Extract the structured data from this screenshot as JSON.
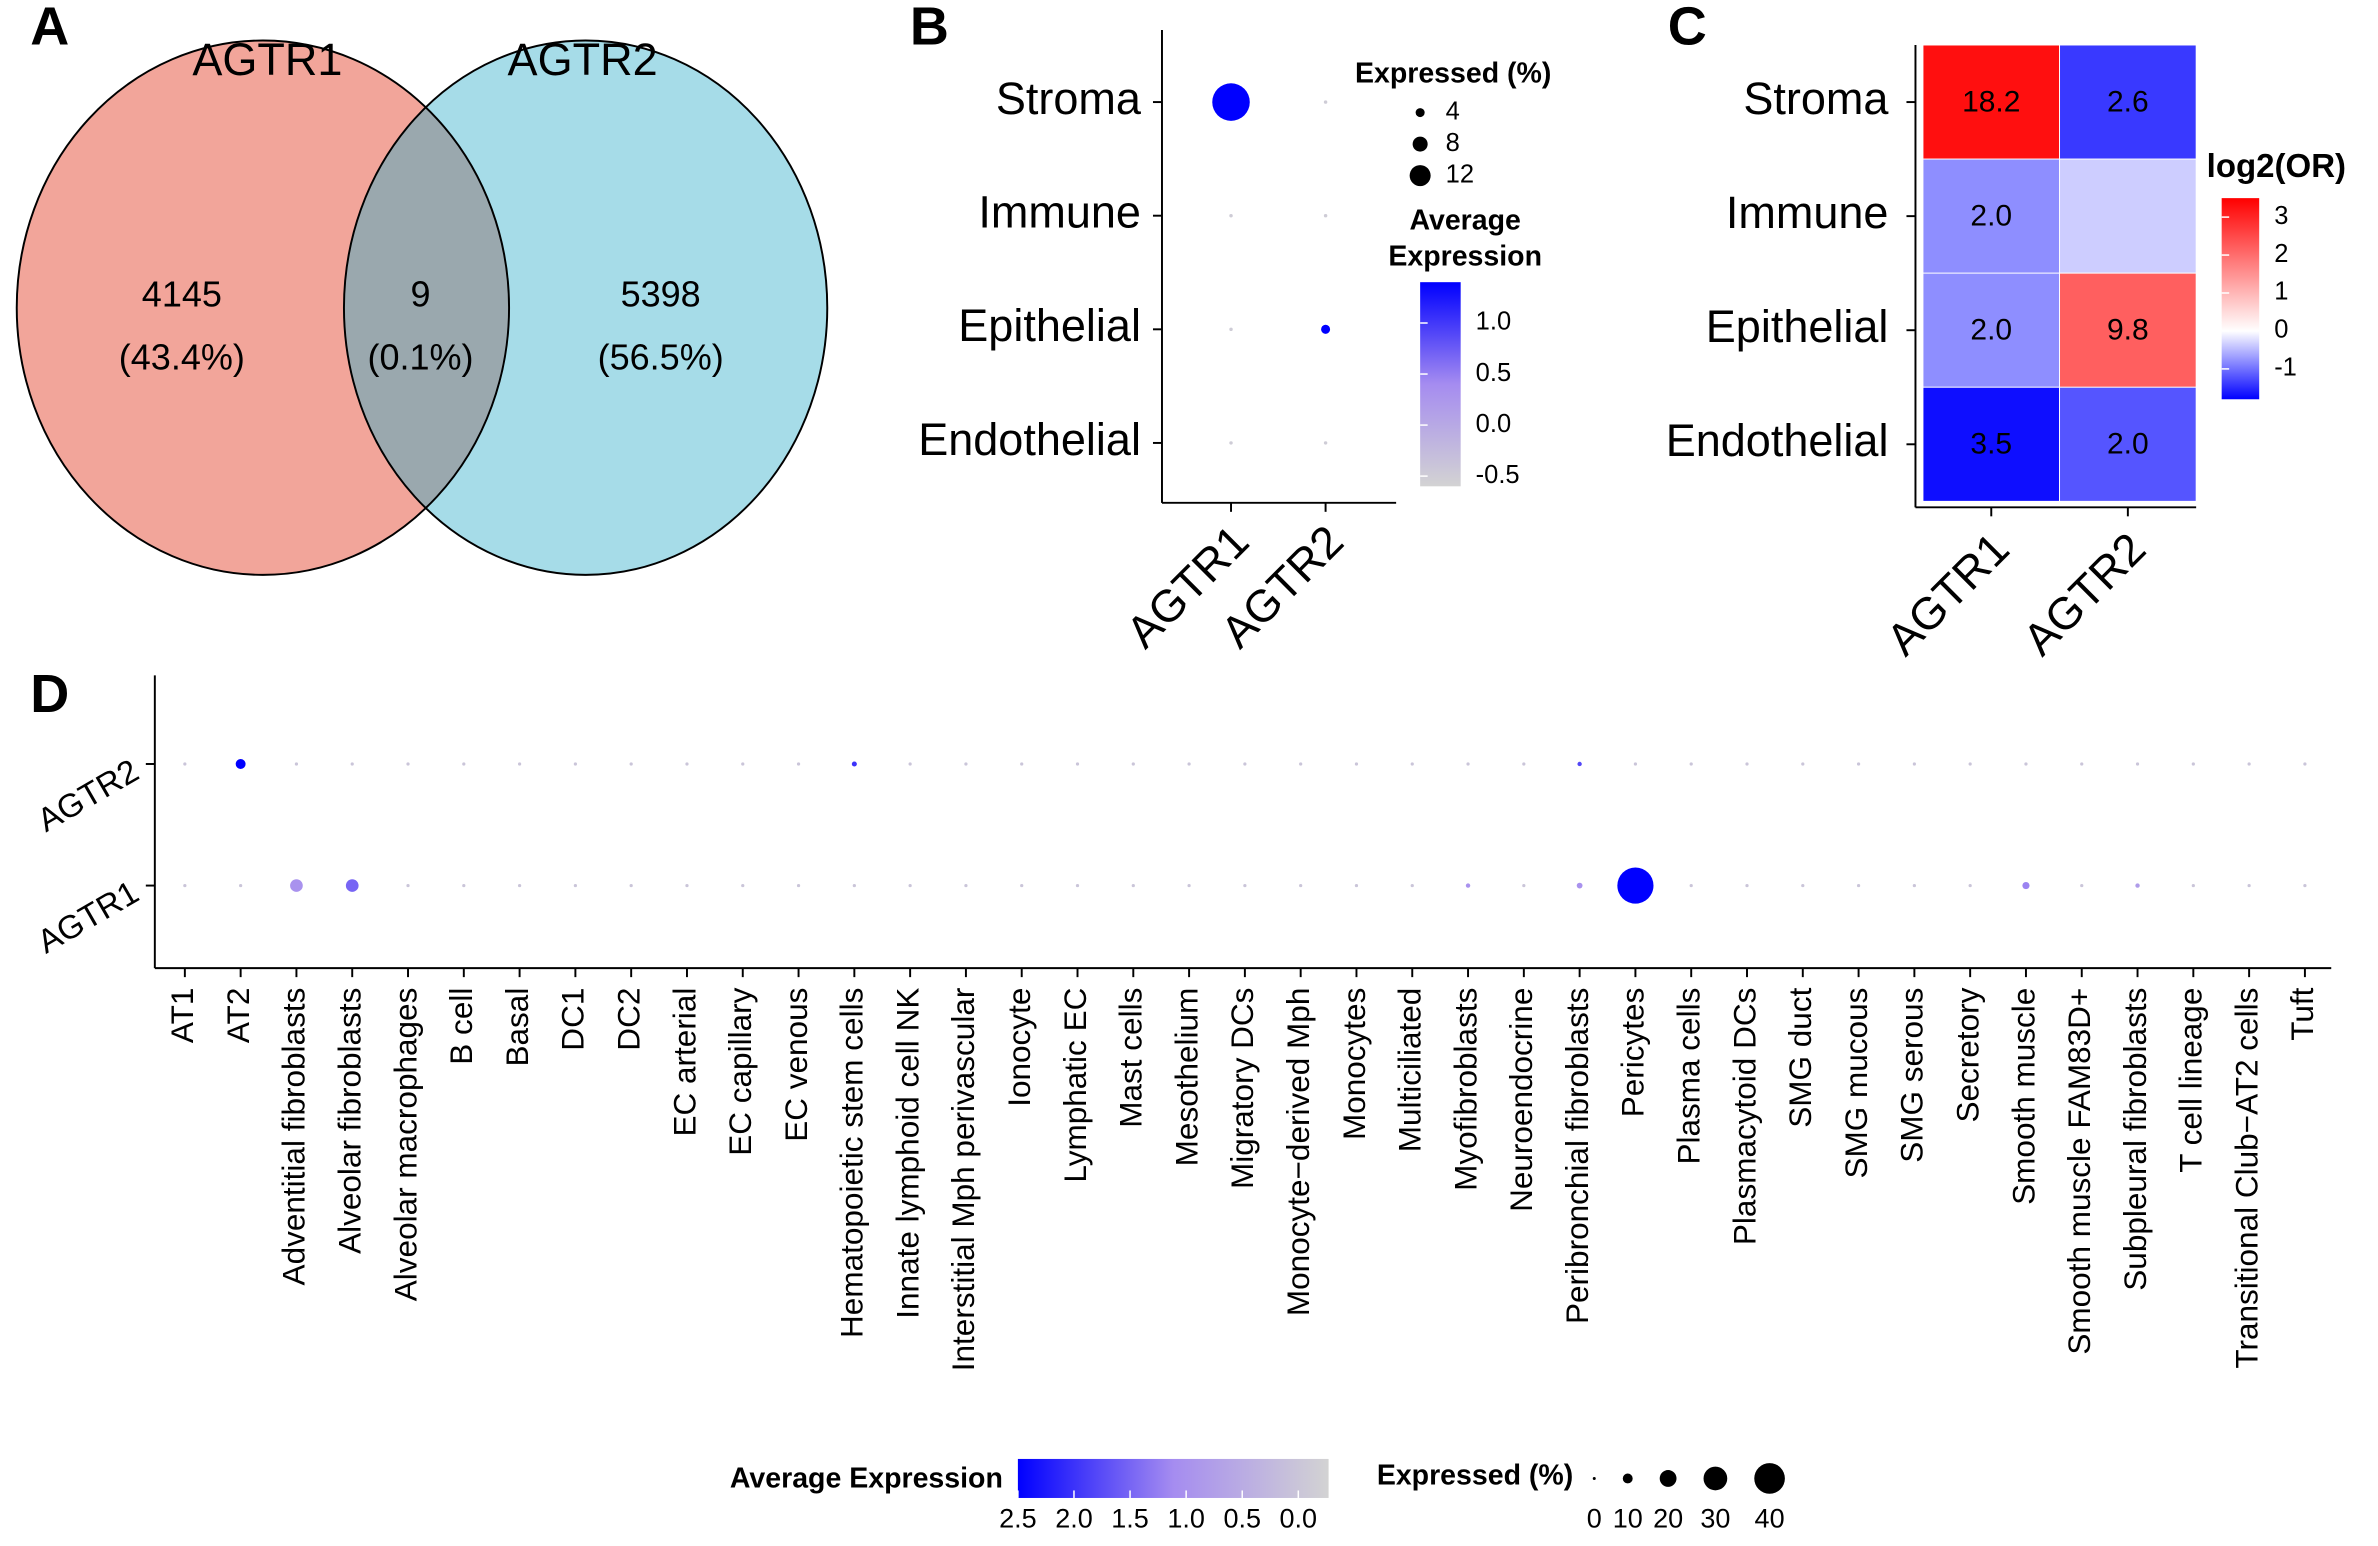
{
  "chart_data": [
    {
      "type": "venn",
      "panel_label": "A",
      "sets": [
        "AGTR1",
        "AGTR2"
      ],
      "colors": [
        "#f2a59a",
        "#a6dce8"
      ],
      "overlap_color": "#9aa8ae",
      "values": [
        4145,
        9,
        5398
      ],
      "percent_labels": [
        "(43.4%)",
        "(0.1%)",
        "(56.5%)"
      ]
    },
    {
      "type": "dotplot",
      "panel_label": "B",
      "legend_position": "right",
      "categories": [
        "AGTR1",
        "AGTR2"
      ],
      "rows": [
        {
          "name": "Stroma",
          "expressed": [
            23,
            0.3
          ],
          "average": [
            1.4,
            -0.5
          ]
        },
        {
          "name": "Immune",
          "expressed": [
            0.3,
            0.3
          ],
          "average": [
            -0.5,
            -0.5
          ]
        },
        {
          "name": "Epithelial",
          "expressed": [
            0.3,
            4
          ],
          "average": [
            -0.5,
            1.4
          ]
        },
        {
          "name": "Endothelial",
          "expressed": [
            0.3,
            0.3
          ],
          "average": [
            -0.5,
            -0.5
          ]
        }
      ],
      "size_legend_title": "Expressed (%)",
      "size_ticks": [
        4,
        8,
        12
      ],
      "color_legend_title": [
        "Average",
        "Expression"
      ],
      "clim": [
        -0.6,
        1.4
      ],
      "cticks": [
        {
          "value": 1,
          "label": "1.0"
        },
        0.5,
        {
          "value": 0,
          "label": "0.0"
        },
        -0.5
      ],
      "color_low": "#d3d3d3",
      "color_mid": "#a58cf0",
      "color_high": "#0000ff"
    },
    {
      "type": "heatmap",
      "panel_label": "C",
      "categories": [
        "AGTR1",
        "AGTR2"
      ],
      "rows": [
        {
          "name": "Stroma",
          "values": [
            3.3,
            -1.4
          ],
          "labels": [
            "18.2",
            "2.6"
          ]
        },
        {
          "name": "Immune",
          "values": [
            -0.8,
            -0.35
          ],
          "labels": [
            "2.0",
            null
          ]
        },
        {
          "name": "Epithelial",
          "values": [
            -0.8,
            2.2
          ],
          "labels": [
            "2.0",
            "9.8"
          ]
        },
        {
          "name": "Endothelial",
          "values": [
            -1.7,
            -1.2
          ],
          "labels": [
            "3.5",
            "2.0"
          ]
        }
      ],
      "legend_title": "log2(OR)",
      "clim": [
        -1.8,
        3.5
      ],
      "cticks": [
        3,
        2,
        1,
        0,
        -1
      ],
      "color_low": "#0000ff",
      "color_mid": "#ffffff",
      "color_high": "#ff0000"
    },
    {
      "type": "dotplot",
      "panel_label": "D",
      "legend_position": "bottom",
      "categories": [
        "AT1",
        "AT2",
        "Adventitial fibroblasts",
        "Alveolar fibroblasts",
        "Alveolar macrophages",
        "B cell",
        "Basal",
        "DC1",
        "DC2",
        "EC arterial",
        "EC capillary",
        "EC venous",
        "Hematopoietic stem cells",
        "Innate lymphoid cell NK",
        "Interstitial Mph perivascular",
        "Ionocyte",
        "Lymphatic EC",
        "Mast cells",
        "Mesothelium",
        "Migratory DCs",
        "Monocyte−derived Mph",
        "Monocytes",
        "Multiciliated",
        "Myofibroblasts",
        "Neuroendocrine",
        "Peribronchial fibroblasts",
        "Pericytes",
        "Plasma cells",
        "Plasmacytoid DCs",
        "SMG duct",
        "SMG mucous",
        "SMG serous",
        "Secretory",
        "Smooth muscle",
        "Smooth muscle FAM83D+",
        "Subpleural fibroblasts",
        "T cell lineage",
        "Transitional Club−AT2 cells",
        "Tuft"
      ],
      "rows": [
        {
          "name": "AGTR2",
          "expressed": [
            0.3,
            10,
            0.3,
            0.3,
            0.3,
            0.3,
            0.3,
            0.3,
            0.3,
            0.3,
            0.3,
            0.3,
            3,
            0.3,
            0.3,
            0.3,
            0.3,
            0.3,
            0.3,
            0.3,
            0.3,
            0.3,
            0.3,
            0.3,
            0.3,
            2,
            0.3,
            0.3,
            0.3,
            0.3,
            0.3,
            0.3,
            0.3,
            0.3,
            0.3,
            0.3,
            0.3,
            0.3,
            0.3
          ],
          "average": [
            0,
            2.5,
            0,
            0,
            0,
            0,
            0,
            0,
            0,
            0,
            0,
            0,
            2,
            0,
            0,
            0,
            0,
            0,
            0,
            0,
            0,
            0,
            0,
            0,
            0,
            1.8,
            0,
            0,
            0,
            0,
            0,
            0,
            0,
            0,
            0,
            0,
            0,
            0,
            0
          ]
        },
        {
          "name": "AGTR1",
          "expressed": [
            0.3,
            0.3,
            14,
            14,
            0.3,
            0.3,
            0.3,
            0.3,
            0.3,
            0.3,
            0.3,
            0.3,
            0.3,
            0.3,
            0.3,
            0.3,
            0.3,
            0.3,
            0.3,
            0.3,
            0.3,
            0.3,
            0.3,
            2,
            0.3,
            4,
            48,
            0.3,
            0.3,
            0.3,
            0.3,
            0.3,
            0.3,
            6,
            0.3,
            2,
            0.3,
            0.3,
            0.3
          ],
          "average": [
            0,
            0,
            1.0,
            1.5,
            0,
            0,
            0,
            0,
            0,
            0,
            0,
            0,
            0,
            0,
            0,
            0,
            0,
            0,
            0,
            0,
            0,
            0,
            0,
            1.0,
            0,
            1.0,
            2.5,
            0,
            0,
            0,
            0,
            0,
            0,
            1.2,
            0,
            0.8,
            0,
            0,
            0
          ]
        }
      ],
      "size_legend_title": "Expressed (%)",
      "size_ticks": [
        0,
        10,
        20,
        30,
        40
      ],
      "color_legend_title": "Average Expression",
      "clim": [
        -0.27,
        2.5
      ],
      "cticks": [
        2.5,
        {
          "value": 2,
          "label": "2.0"
        },
        1.5,
        {
          "value": 1,
          "label": "1.0"
        },
        0.5,
        {
          "value": 0,
          "label": "0.0"
        }
      ],
      "color_low": "#d3d3d3",
      "color_mid": "#a58cf0",
      "color_high": "#0000ff"
    }
  ]
}
